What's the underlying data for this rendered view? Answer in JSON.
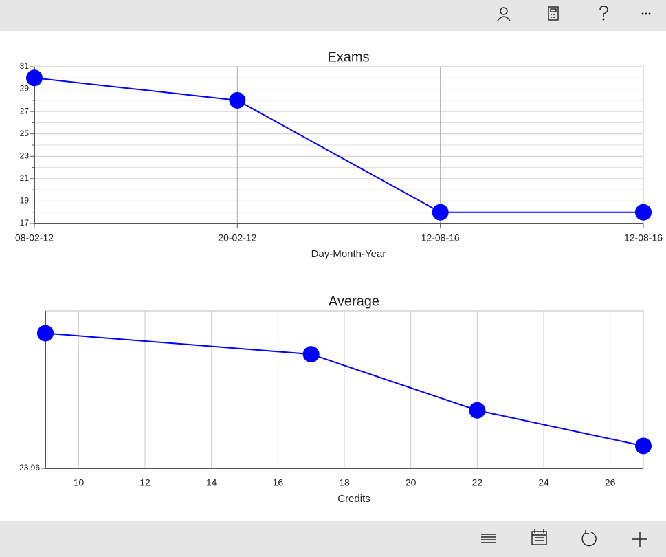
{
  "chart_data": [
    {
      "type": "line",
      "title": "Exams",
      "x_label": "Day-Month-Year",
      "categories": [
        "08-02-12",
        "20-02-12",
        "12-08-16",
        "12-08-16"
      ],
      "values": [
        30,
        28,
        18,
        18
      ],
      "color": "#0000ff",
      "ylim": [
        17,
        31
      ],
      "yticks": [
        17,
        19,
        21,
        23,
        25,
        27,
        29,
        31
      ],
      "yminor": [
        18,
        20,
        22,
        24,
        26,
        28,
        30
      ],
      "grid": true
    },
    {
      "type": "line",
      "title": "Average",
      "x_label": "Credits",
      "x": [
        9,
        17,
        22,
        27
      ],
      "values": [
        30,
        29.06,
        26.55,
        24.96
      ],
      "color": "#0000ff",
      "xlim": [
        9,
        27
      ],
      "xticks": [
        10,
        12,
        14,
        16,
        18,
        20,
        22,
        24,
        26
      ],
      "ylim": [
        23.96,
        31
      ],
      "yticks": [
        23.96
      ],
      "grid": true
    }
  ]
}
